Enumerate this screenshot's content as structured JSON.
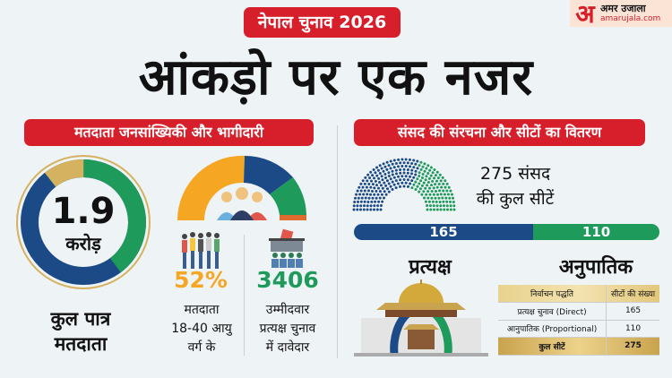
{
  "header": {
    "tag": "नेपाल चुनाव 2026",
    "title": "आंकड़ो पर एक नजर"
  },
  "logo": {
    "mark": "अ",
    "name": "अमर उजाला",
    "site": "amarujala.com"
  },
  "left": {
    "heading": "मतदाता जनसांख्यिकी और भागीदारी",
    "total": {
      "value": "1.9",
      "unit": "करोड़",
      "label1": "कुल पात्र",
      "label2": "मतदाता"
    },
    "youth": {
      "value": "52%",
      "label1": "मतदाता",
      "label2": "18-40 आयु",
      "label3": "वर्ग के"
    },
    "candidates": {
      "value": "3406",
      "label1": "उम्मीदवार",
      "label2": "प्रत्यक्ष चुनाव",
      "label3": "में दावेदार"
    }
  },
  "right": {
    "heading": "संसद की संरचना और सीटों का वितरण",
    "seats_line1": "275 संसद",
    "seats_line2": "की कुल सीटें",
    "direct": {
      "value": "165",
      "label": "प्रत्यक्ष"
    },
    "proportional": {
      "value": "110",
      "label": "अनुपातिक"
    },
    "table": {
      "headers": [
        "निर्वाचन पद्धति",
        "सीटों की संख्या"
      ],
      "rows": [
        [
          "प्रत्यक्ष चुनाव (Direct)",
          "165"
        ],
        [
          "आनुपातिक (Proportional)",
          "110"
        ]
      ],
      "total": [
        "कुल सीटें",
        "275"
      ]
    }
  },
  "colors": {
    "red": "#d71f2b",
    "blue": "#1b4a86",
    "green": "#1e9a5a",
    "orange": "#f5a623",
    "gold": "#d4b260"
  },
  "chart_data": {
    "type": "parliament",
    "total": 275,
    "series": [
      {
        "name": "प्रत्यक्ष",
        "value": 165,
        "color": "#1b4a86"
      },
      {
        "name": "अनुपातिक",
        "value": 110,
        "color": "#1e9a5a"
      }
    ]
  }
}
